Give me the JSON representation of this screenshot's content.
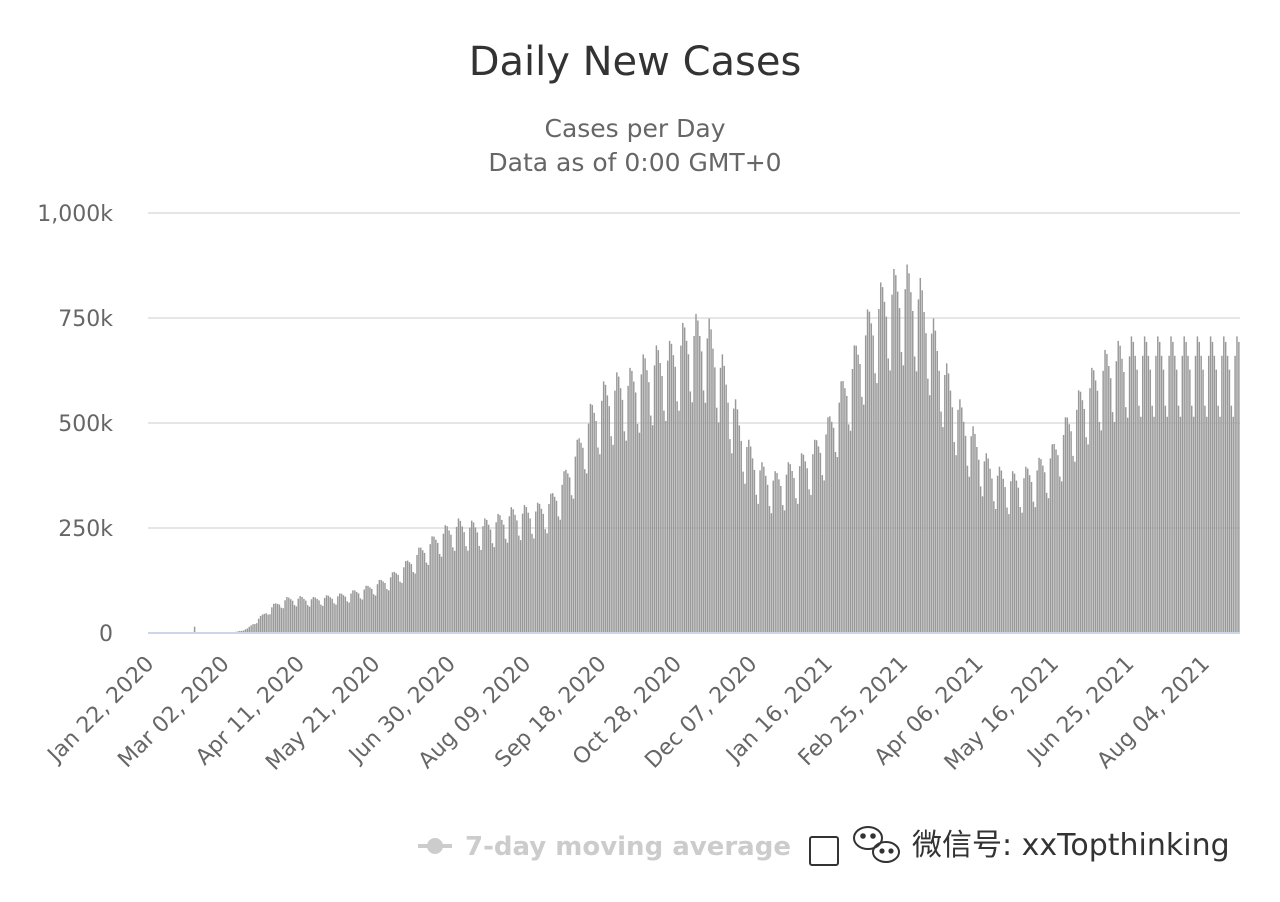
{
  "chart_data": {
    "type": "bar",
    "title": "Daily New Cases",
    "subtitle": "Cases per Day",
    "subtitle2": "Data as of 0:00 GMT+0",
    "ylim": [
      0,
      1000000
    ],
    "y_ticks": [
      {
        "value": 0,
        "label": "0"
      },
      {
        "value": 250000,
        "label": "250k"
      },
      {
        "value": 500000,
        "label": "500k"
      },
      {
        "value": 750000,
        "label": "750k"
      },
      {
        "value": 1000000,
        "label": "1,000k"
      }
    ],
    "x_tick_labels": [
      "Jan 22, 2020",
      "Mar 02, 2020",
      "Apr 11, 2020",
      "May 21, 2020",
      "Jun 30, 2020",
      "Aug 09, 2020",
      "Sep 18, 2020",
      "Oct 28, 2020",
      "Dec 07, 2020",
      "Jan 16, 2021",
      "Feb 25, 2021",
      "Apr 06, 2021",
      "May 16, 2021",
      "Jun 25, 2021",
      "Aug 04, 2021"
    ],
    "grid": true,
    "bar_color": "#999999",
    "baseline_color": "#ccd6eb",
    "grid_color": "#e6e6e6",
    "trend_weeks": [
      {
        "week": 0,
        "value": 500
      },
      {
        "week": 2,
        "value": 2000
      },
      {
        "week": 3,
        "value": 1500
      },
      {
        "week": 5,
        "value": 1000
      },
      {
        "week": 6,
        "value": 1500
      },
      {
        "week": 7,
        "value": 10000
      },
      {
        "week": 8,
        "value": 38000
      },
      {
        "week": 9,
        "value": 65000
      },
      {
        "week": 10,
        "value": 80000
      },
      {
        "week": 11,
        "value": 82000
      },
      {
        "week": 12,
        "value": 80000
      },
      {
        "week": 13,
        "value": 84000
      },
      {
        "week": 14,
        "value": 88000
      },
      {
        "week": 15,
        "value": 95000
      },
      {
        "week": 16,
        "value": 105000
      },
      {
        "week": 17,
        "value": 118000
      },
      {
        "week": 18,
        "value": 135000
      },
      {
        "week": 19,
        "value": 160000
      },
      {
        "week": 20,
        "value": 190000
      },
      {
        "week": 21,
        "value": 215000
      },
      {
        "week": 22,
        "value": 240000
      },
      {
        "week": 23,
        "value": 255000
      },
      {
        "week": 24,
        "value": 250000
      },
      {
        "week": 25,
        "value": 255000
      },
      {
        "week": 26,
        "value": 265000
      },
      {
        "week": 27,
        "value": 280000
      },
      {
        "week": 28,
        "value": 285000
      },
      {
        "week": 29,
        "value": 290000
      },
      {
        "week": 30,
        "value": 310000
      },
      {
        "week": 31,
        "value": 360000
      },
      {
        "week": 32,
        "value": 430000
      },
      {
        "week": 33,
        "value": 510000
      },
      {
        "week": 34,
        "value": 560000
      },
      {
        "week": 35,
        "value": 580000
      },
      {
        "week": 36,
        "value": 590000
      },
      {
        "week": 37,
        "value": 620000
      },
      {
        "week": 38,
        "value": 640000
      },
      {
        "week": 39,
        "value": 650000
      },
      {
        "week": 40,
        "value": 690000
      },
      {
        "week": 41,
        "value": 710000
      },
      {
        "week": 42,
        "value": 700000
      },
      {
        "week": 43,
        "value": 620000
      },
      {
        "week": 44,
        "value": 520000
      },
      {
        "week": 45,
        "value": 430000
      },
      {
        "week": 46,
        "value": 380000
      },
      {
        "week": 47,
        "value": 360000
      },
      {
        "week": 48,
        "value": 380000
      },
      {
        "week": 49,
        "value": 400000
      },
      {
        "week": 50,
        "value": 430000
      },
      {
        "week": 51,
        "value": 480000
      },
      {
        "week": 52,
        "value": 560000
      },
      {
        "week": 53,
        "value": 640000
      },
      {
        "week": 54,
        "value": 720000
      },
      {
        "week": 55,
        "value": 780000
      },
      {
        "week": 56,
        "value": 810000
      },
      {
        "week": 57,
        "value": 820000
      },
      {
        "week": 58,
        "value": 790000
      },
      {
        "week": 59,
        "value": 700000
      },
      {
        "week": 60,
        "value": 600000
      },
      {
        "week": 61,
        "value": 520000
      },
      {
        "week": 62,
        "value": 460000
      },
      {
        "week": 63,
        "value": 400000
      },
      {
        "week": 64,
        "value": 370000
      },
      {
        "week": 65,
        "value": 360000
      },
      {
        "week": 66,
        "value": 370000
      },
      {
        "week": 67,
        "value": 390000
      },
      {
        "week": 68,
        "value": 420000
      },
      {
        "week": 69,
        "value": 480000
      },
      {
        "week": 70,
        "value": 540000
      },
      {
        "week": 71,
        "value": 590000
      },
      {
        "week": 72,
        "value": 630000
      },
      {
        "week": 73,
        "value": 650000
      },
      {
        "week": 74,
        "value": 660000
      },
      {
        "week": 75,
        "value": 660000
      },
      {
        "week": 76,
        "value": 660000
      }
    ]
  },
  "legend": {
    "label": "7-day moving average",
    "state": "hidden"
  },
  "watermark": {
    "text": "微信号: xxTopthinking"
  }
}
